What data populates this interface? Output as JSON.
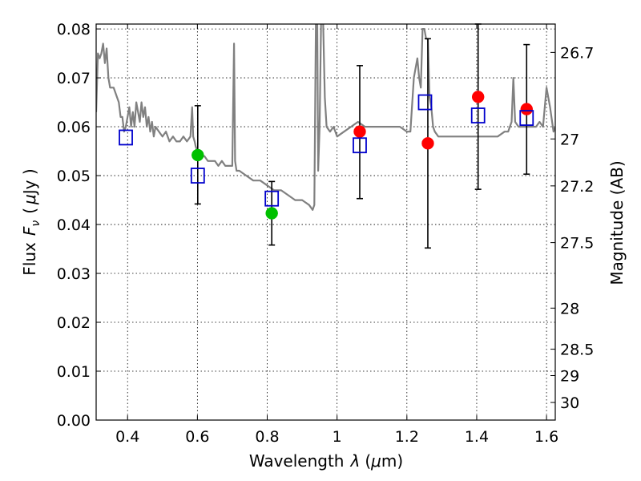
{
  "chart_data": {
    "type": "scatter",
    "xlabel_prefix": "Wavelength",
    "xlabel_symbol": "λ",
    "xlabel_unit_open": "(",
    "xlabel_unit_mu": "μ",
    "xlabel_unit_rest": "m)",
    "ylabel_prefix": "Flux",
    "ylabel_symbol": "F",
    "ylabel_subscript": "ν",
    "ylabel_unit_open": "(",
    "ylabel_unit_mu": "μ",
    "ylabel_unit_rest": "Jy )",
    "y2label": "Magnitude (AB)",
    "xlim": [
      0.31,
      1.625
    ],
    "ylim": [
      0.0,
      0.081
    ],
    "grid": true,
    "x_ticks": [
      0.4,
      0.6,
      0.8,
      1.0,
      1.2,
      1.4,
      1.6
    ],
    "x_tick_labels": [
      "0.4",
      "0.6",
      "0.8",
      "1",
      "1.2",
      "1.4",
      "1.6"
    ],
    "y_ticks": [
      0.0,
      0.01,
      0.02,
      0.03,
      0.04,
      0.05,
      0.06,
      0.07,
      0.08
    ],
    "y_tick_labels": [
      "0.00",
      "0.01",
      "0.02",
      "0.03",
      "0.04",
      "0.05",
      "0.06",
      "0.07",
      "0.08"
    ],
    "y2_ticks": [
      {
        "label": "26.7",
        "flux": 0.0752
      },
      {
        "label": "27",
        "flux": 0.0575
      },
      {
        "label": "27.2",
        "flux": 0.0479
      },
      {
        "label": "27.5",
        "flux": 0.0363
      },
      {
        "label": "28",
        "flux": 0.0229
      },
      {
        "label": "28.5",
        "flux": 0.0145
      },
      {
        "label": "29",
        "flux": 0.0091
      },
      {
        "label": "30",
        "flux": 0.0036
      }
    ],
    "series": [
      {
        "name": "model-spectrum",
        "kind": "line",
        "color": "#808080",
        "x": [
          0.31,
          0.315,
          0.32,
          0.325,
          0.33,
          0.335,
          0.34,
          0.345,
          0.35,
          0.36,
          0.37,
          0.375,
          0.38,
          0.385,
          0.39,
          0.395,
          0.4,
          0.405,
          0.41,
          0.415,
          0.42,
          0.425,
          0.43,
          0.435,
          0.44,
          0.445,
          0.45,
          0.455,
          0.46,
          0.465,
          0.47,
          0.475,
          0.48,
          0.49,
          0.5,
          0.51,
          0.52,
          0.53,
          0.54,
          0.55,
          0.56,
          0.57,
          0.58,
          0.585,
          0.588,
          0.592,
          0.595,
          0.6,
          0.61,
          0.62,
          0.63,
          0.64,
          0.65,
          0.66,
          0.67,
          0.68,
          0.69,
          0.7,
          0.705,
          0.708,
          0.712,
          0.716,
          0.72,
          0.74,
          0.76,
          0.78,
          0.8,
          0.82,
          0.84,
          0.86,
          0.88,
          0.9,
          0.92,
          0.93,
          0.935,
          0.94,
          0.943,
          0.946,
          0.95,
          0.955,
          0.96,
          0.965,
          0.97,
          0.98,
          0.99,
          1.0,
          1.02,
          1.04,
          1.06,
          1.08,
          1.1,
          1.12,
          1.14,
          1.16,
          1.18,
          1.2,
          1.21,
          1.22,
          1.23,
          1.235,
          1.24,
          1.245,
          1.25,
          1.255,
          1.26,
          1.265,
          1.27,
          1.275,
          1.28,
          1.29,
          1.3,
          1.32,
          1.34,
          1.36,
          1.38,
          1.4,
          1.42,
          1.44,
          1.46,
          1.48,
          1.49,
          1.5,
          1.505,
          1.51,
          1.52,
          1.54,
          1.56,
          1.57,
          1.58,
          1.59,
          1.6,
          1.61,
          1.62,
          1.625
        ],
        "y": [
          0.063,
          0.075,
          0.074,
          0.075,
          0.077,
          0.073,
          0.076,
          0.07,
          0.068,
          0.068,
          0.066,
          0.065,
          0.062,
          0.062,
          0.059,
          0.06,
          0.062,
          0.064,
          0.06,
          0.063,
          0.06,
          0.065,
          0.063,
          0.061,
          0.065,
          0.062,
          0.064,
          0.06,
          0.062,
          0.059,
          0.061,
          0.058,
          0.06,
          0.059,
          0.058,
          0.059,
          0.057,
          0.058,
          0.057,
          0.057,
          0.058,
          0.057,
          0.058,
          0.064,
          0.058,
          0.057,
          0.056,
          0.055,
          0.054,
          0.054,
          0.053,
          0.053,
          0.053,
          0.052,
          0.053,
          0.052,
          0.052,
          0.052,
          0.077,
          0.053,
          0.051,
          0.051,
          0.051,
          0.05,
          0.049,
          0.049,
          0.048,
          0.047,
          0.047,
          0.046,
          0.045,
          0.045,
          0.044,
          0.043,
          0.044,
          0.086,
          0.086,
          0.051,
          0.06,
          0.086,
          0.082,
          0.066,
          0.06,
          0.059,
          0.06,
          0.058,
          0.059,
          0.06,
          0.061,
          0.06,
          0.06,
          0.06,
          0.06,
          0.06,
          0.06,
          0.059,
          0.059,
          0.07,
          0.074,
          0.07,
          0.068,
          0.08,
          0.08,
          0.078,
          0.078,
          0.066,
          0.064,
          0.06,
          0.059,
          0.058,
          0.058,
          0.058,
          0.058,
          0.058,
          0.058,
          0.058,
          0.058,
          0.058,
          0.058,
          0.059,
          0.059,
          0.061,
          0.07,
          0.061,
          0.06,
          0.06,
          0.06,
          0.06,
          0.061,
          0.06,
          0.068,
          0.064,
          0.059,
          0.06
        ]
      },
      {
        "name": "green-detections",
        "kind": "marker",
        "marker": "circle",
        "color": "#00c000",
        "points": [
          {
            "x": 0.601,
            "y": 0.0542
          },
          {
            "x": 0.813,
            "y": 0.0423
          }
        ]
      },
      {
        "name": "red-detections",
        "kind": "marker",
        "marker": "circle",
        "color": "#ff0000",
        "points": [
          {
            "x": 1.065,
            "y": 0.059
          },
          {
            "x": 1.26,
            "y": 0.0566
          },
          {
            "x": 1.404,
            "y": 0.0661
          },
          {
            "x": 1.543,
            "y": 0.0636
          }
        ]
      },
      {
        "name": "model-photometry",
        "kind": "marker",
        "marker": "open-square",
        "color": "#0000cc",
        "points": [
          {
            "x": 0.395,
            "y": 0.0578
          },
          {
            "x": 0.601,
            "y": 0.05
          },
          {
            "x": 0.813,
            "y": 0.0453
          },
          {
            "x": 1.065,
            "y": 0.0562
          },
          {
            "x": 1.252,
            "y": 0.065
          },
          {
            "x": 1.404,
            "y": 0.0623
          },
          {
            "x": 1.543,
            "y": 0.0618
          }
        ]
      }
    ],
    "error_bars": [
      {
        "x": 0.601,
        "low": 0.0442,
        "high": 0.0643
      },
      {
        "x": 0.813,
        "low": 0.0358,
        "high": 0.0488
      },
      {
        "x": 1.065,
        "low": 0.0453,
        "high": 0.0725
      },
      {
        "x": 1.26,
        "low": 0.0352,
        "high": 0.078
      },
      {
        "x": 1.404,
        "low": 0.0472,
        "high": 0.081
      },
      {
        "x": 1.543,
        "low": 0.0503,
        "high": 0.0768
      }
    ]
  }
}
